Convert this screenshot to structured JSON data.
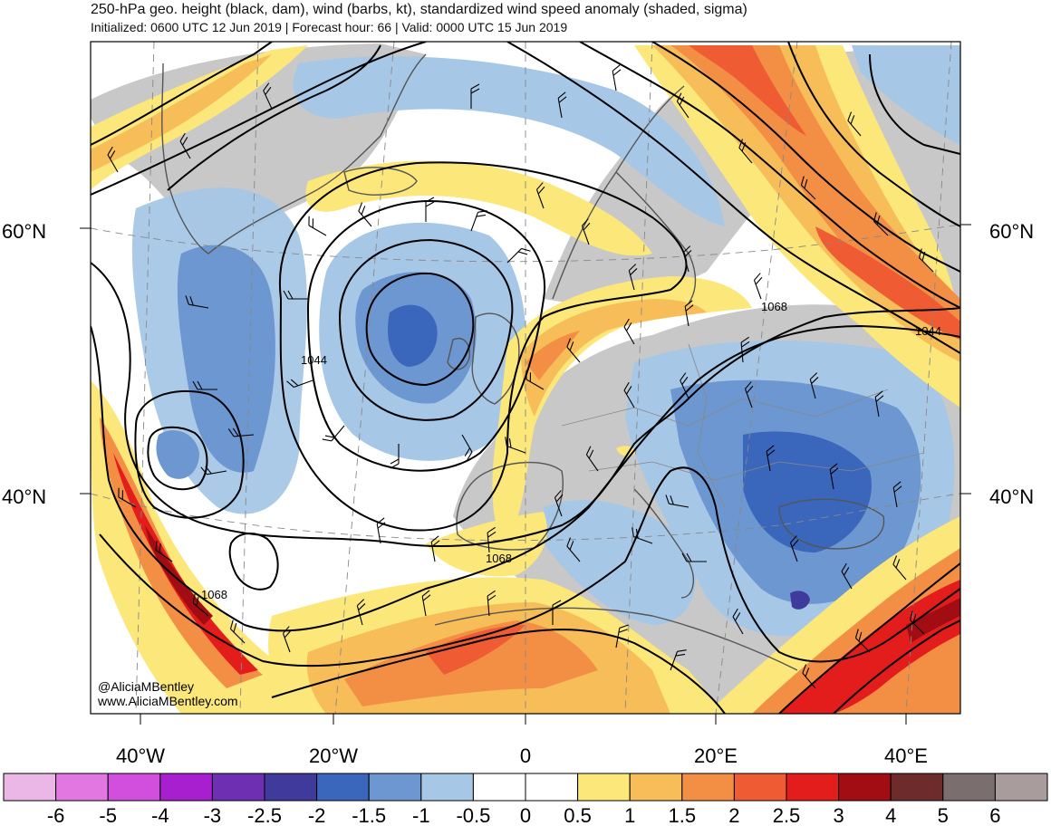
{
  "title": "250-hPa geo. height (black, dam), wind (barbs, kt), standardized wind speed anomaly (shaded, sigma)",
  "subtitle": "Initialized: 0600 UTC 12 Jun 2019 | Forecast hour: 66 | Valid: 0000 UTC 15 Jun 2019",
  "credit": {
    "handle": "@AliciaMBentley",
    "website": "www.AliciaMBentley.com"
  },
  "lat_labels": {
    "left": [
      "60°N",
      "40°N"
    ],
    "right": [
      "60°N",
      "40°N"
    ]
  },
  "lon_labels": [
    "40°W",
    "20°W",
    "0",
    "20°E",
    "40°E"
  ],
  "contour_labels": [
    "1068",
    "1044",
    "1068",
    "1044",
    "1068"
  ],
  "colorbar": {
    "ticks": [
      "-6",
      "-5",
      "-4",
      "-3",
      "-2.5",
      "-2",
      "-1.5",
      "-1",
      "-0.5",
      "0",
      "0.5",
      "1",
      "1.5",
      "2",
      "2.5",
      "3",
      "4",
      "5",
      "6"
    ],
    "colors": [
      "#eab7e6",
      "#e277e1",
      "#d14fdc",
      "#a71fce",
      "#6f2fb3",
      "#403a9d",
      "#3a66bc",
      "#6d97d0",
      "#a6c7e6",
      "#ffffff",
      "#ffffff",
      "#fbe77a",
      "#f6bd58",
      "#f38f45",
      "#ef5b33",
      "#e31d1b",
      "#a10d12",
      "#6e2b2b",
      "#7a6e6e",
      "#a89c9c"
    ]
  },
  "palette": {
    "land": "#c8c8c8",
    "ocean": "#ffffff",
    "contour": "#000000",
    "coast": "#555555",
    "grid": "#888888"
  }
}
